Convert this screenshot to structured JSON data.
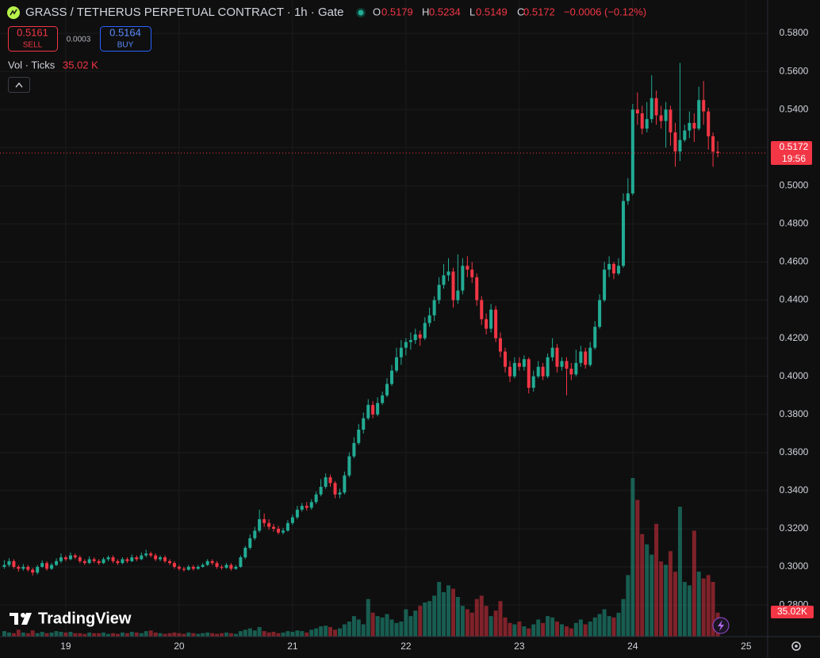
{
  "header": {
    "title": "GRASS / TETHERUS PERPETUAL CONTRACT · 1h · Gate",
    "ohlc": [
      {
        "label": "O",
        "value": 0.5179
      },
      {
        "label": "H",
        "value": 0.5234
      },
      {
        "label": "L",
        "value": 0.5149
      },
      {
        "label": "C",
        "value": 0.5172
      }
    ],
    "change": "−0.0006 (−0.12%)"
  },
  "order_panel": {
    "sell": {
      "price": 0.5161,
      "label": "SELL"
    },
    "spread": 0.0003,
    "buy": {
      "price": 0.5164,
      "label": "BUY"
    }
  },
  "watermark": "TradingView",
  "chart_data": {
    "type": "candlestick",
    "up_color": "#22ab94",
    "down_color": "#f23645",
    "x": [
      18.458,
      18.5,
      18.542,
      18.583,
      18.625,
      18.667,
      18.708,
      18.75,
      18.792,
      18.833,
      18.875,
      18.917,
      18.958,
      19,
      19.042,
      19.083,
      19.125,
      19.167,
      19.208,
      19.25,
      19.292,
      19.333,
      19.375,
      19.417,
      19.458,
      19.5,
      19.542,
      19.583,
      19.625,
      19.667,
      19.708,
      19.75,
      19.792,
      19.833,
      19.875,
      19.917,
      19.958,
      20,
      20.042,
      20.083,
      20.125,
      20.167,
      20.208,
      20.25,
      20.292,
      20.333,
      20.375,
      20.417,
      20.458,
      20.5,
      20.542,
      20.583,
      20.625,
      20.667,
      20.708,
      20.75,
      20.792,
      20.833,
      20.875,
      20.917,
      20.958,
      21,
      21.042,
      21.083,
      21.125,
      21.167,
      21.208,
      21.25,
      21.292,
      21.333,
      21.375,
      21.417,
      21.458,
      21.5,
      21.542,
      21.583,
      21.625,
      21.667,
      21.708,
      21.75,
      21.792,
      21.833,
      21.875,
      21.917,
      21.958,
      22,
      22.042,
      22.083,
      22.125,
      22.167,
      22.208,
      22.25,
      22.292,
      22.333,
      22.375,
      22.417,
      22.458,
      22.5,
      22.542,
      22.583,
      22.625,
      22.667,
      22.708,
      22.75,
      22.792,
      22.833,
      22.875,
      22.917,
      22.958,
      23,
      23.042,
      23.083,
      23.125,
      23.167,
      23.208,
      23.25,
      23.292,
      23.333,
      23.375,
      23.417,
      23.458,
      23.5,
      23.542,
      23.583,
      23.625,
      23.667,
      23.708,
      23.75,
      23.792,
      23.833,
      23.875,
      23.917,
      23.958,
      24,
      24.042,
      24.083,
      24.125,
      24.167,
      24.208,
      24.25,
      24.292,
      24.333,
      24.375,
      24.417,
      24.458,
      24.5,
      24.542,
      24.583,
      24.625,
      24.667,
      24.708,
      24.75
    ],
    "ohlc": [
      [
        0.3,
        0.3035,
        0.299,
        0.301
      ],
      [
        0.301,
        0.3045,
        0.3,
        0.303
      ],
      [
        0.303,
        0.304,
        0.299,
        0.3
      ],
      [
        0.3,
        0.301,
        0.2975,
        0.299
      ],
      [
        0.299,
        0.3015,
        0.298,
        0.3
      ],
      [
        0.3,
        0.301,
        0.2975,
        0.2985
      ],
      [
        0.2985,
        0.2995,
        0.2955,
        0.297
      ],
      [
        0.297,
        0.301,
        0.296,
        0.3
      ],
      [
        0.3,
        0.3035,
        0.2995,
        0.302
      ],
      [
        0.302,
        0.303,
        0.298,
        0.299
      ],
      [
        0.299,
        0.302,
        0.2985,
        0.301
      ],
      [
        0.301,
        0.3045,
        0.3005,
        0.303
      ],
      [
        0.303,
        0.307,
        0.302,
        0.305
      ],
      [
        0.305,
        0.306,
        0.303,
        0.304
      ],
      [
        0.304,
        0.3075,
        0.3035,
        0.306
      ],
      [
        0.306,
        0.307,
        0.304,
        0.305
      ],
      [
        0.305,
        0.306,
        0.302,
        0.303
      ],
      [
        0.303,
        0.304,
        0.301,
        0.302
      ],
      [
        0.302,
        0.3055,
        0.3015,
        0.304
      ],
      [
        0.304,
        0.305,
        0.302,
        0.303
      ],
      [
        0.303,
        0.304,
        0.301,
        0.302
      ],
      [
        0.302,
        0.305,
        0.3015,
        0.304
      ],
      [
        0.304,
        0.306,
        0.303,
        0.305
      ],
      [
        0.305,
        0.306,
        0.302,
        0.303
      ],
      [
        0.303,
        0.304,
        0.301,
        0.302
      ],
      [
        0.302,
        0.305,
        0.3015,
        0.304
      ],
      [
        0.304,
        0.305,
        0.302,
        0.303
      ],
      [
        0.303,
        0.3065,
        0.3025,
        0.305
      ],
      [
        0.305,
        0.306,
        0.303,
        0.304
      ],
      [
        0.304,
        0.3075,
        0.3035,
        0.306
      ],
      [
        0.306,
        0.309,
        0.305,
        0.307
      ],
      [
        0.307,
        0.308,
        0.305,
        0.306
      ],
      [
        0.306,
        0.307,
        0.303,
        0.304
      ],
      [
        0.304,
        0.306,
        0.303,
        0.305
      ],
      [
        0.305,
        0.306,
        0.302,
        0.303
      ],
      [
        0.303,
        0.304,
        0.301,
        0.302
      ],
      [
        0.302,
        0.303,
        0.299,
        0.3
      ],
      [
        0.3,
        0.301,
        0.298,
        0.299
      ],
      [
        0.299,
        0.3,
        0.2975,
        0.2985
      ],
      [
        0.2985,
        0.301,
        0.298,
        0.3
      ],
      [
        0.3,
        0.301,
        0.298,
        0.299
      ],
      [
        0.299,
        0.301,
        0.2985,
        0.3
      ],
      [
        0.3,
        0.302,
        0.2995,
        0.301
      ],
      [
        0.301,
        0.304,
        0.3005,
        0.303
      ],
      [
        0.303,
        0.304,
        0.301,
        0.302
      ],
      [
        0.302,
        0.303,
        0.299,
        0.3
      ],
      [
        0.3,
        0.301,
        0.2985,
        0.2995
      ],
      [
        0.2995,
        0.302,
        0.299,
        0.301
      ],
      [
        0.301,
        0.302,
        0.298,
        0.299
      ],
      [
        0.299,
        0.301,
        0.2985,
        0.3
      ],
      [
        0.3,
        0.306,
        0.2995,
        0.305
      ],
      [
        0.305,
        0.311,
        0.304,
        0.31
      ],
      [
        0.31,
        0.317,
        0.309,
        0.315
      ],
      [
        0.315,
        0.321,
        0.314,
        0.319
      ],
      [
        0.319,
        0.33,
        0.318,
        0.325
      ],
      [
        0.325,
        0.328,
        0.321,
        0.323
      ],
      [
        0.323,
        0.325,
        0.3195,
        0.321
      ],
      [
        0.321,
        0.3225,
        0.3185,
        0.32
      ],
      [
        0.32,
        0.3215,
        0.317,
        0.318
      ],
      [
        0.318,
        0.3205,
        0.317,
        0.319
      ],
      [
        0.319,
        0.3245,
        0.3185,
        0.323
      ],
      [
        0.323,
        0.3275,
        0.322,
        0.326
      ],
      [
        0.326,
        0.332,
        0.325,
        0.33
      ],
      [
        0.33,
        0.3335,
        0.329,
        0.332
      ],
      [
        0.332,
        0.334,
        0.3295,
        0.331
      ],
      [
        0.331,
        0.3355,
        0.33,
        0.334
      ],
      [
        0.334,
        0.3395,
        0.333,
        0.338
      ],
      [
        0.338,
        0.346,
        0.337,
        0.342
      ],
      [
        0.342,
        0.349,
        0.341,
        0.347
      ],
      [
        0.347,
        0.3485,
        0.342,
        0.344
      ],
      [
        0.344,
        0.345,
        0.336,
        0.338
      ],
      [
        0.338,
        0.341,
        0.336,
        0.339
      ],
      [
        0.339,
        0.35,
        0.338,
        0.348
      ],
      [
        0.348,
        0.36,
        0.347,
        0.358
      ],
      [
        0.358,
        0.368,
        0.357,
        0.365
      ],
      [
        0.365,
        0.375,
        0.364,
        0.372
      ],
      [
        0.372,
        0.381,
        0.37,
        0.378
      ],
      [
        0.378,
        0.388,
        0.377,
        0.385
      ],
      [
        0.385,
        0.387,
        0.378,
        0.38
      ],
      [
        0.38,
        0.389,
        0.379,
        0.386
      ],
      [
        0.386,
        0.392,
        0.385,
        0.39
      ],
      [
        0.39,
        0.399,
        0.389,
        0.396
      ],
      [
        0.396,
        0.406,
        0.395,
        0.403
      ],
      [
        0.403,
        0.415,
        0.402,
        0.41
      ],
      [
        0.41,
        0.419,
        0.406,
        0.415
      ],
      [
        0.415,
        0.42,
        0.411,
        0.418
      ],
      [
        0.418,
        0.423,
        0.414,
        0.419
      ],
      [
        0.419,
        0.425,
        0.417,
        0.422
      ],
      [
        0.422,
        0.424,
        0.416,
        0.42
      ],
      [
        0.42,
        0.431,
        0.419,
        0.428
      ],
      [
        0.428,
        0.436,
        0.426,
        0.432
      ],
      [
        0.432,
        0.442,
        0.429,
        0.44
      ],
      [
        0.44,
        0.452,
        0.438,
        0.448
      ],
      [
        0.448,
        0.459,
        0.446,
        0.453
      ],
      [
        0.453,
        0.462,
        0.45,
        0.455
      ],
      [
        0.455,
        0.457,
        0.436,
        0.44
      ],
      [
        0.44,
        0.464,
        0.438,
        0.445
      ],
      [
        0.445,
        0.462,
        0.443,
        0.458
      ],
      [
        0.458,
        0.463,
        0.452,
        0.456
      ],
      [
        0.456,
        0.46,
        0.449,
        0.452
      ],
      [
        0.452,
        0.454,
        0.437,
        0.44
      ],
      [
        0.44,
        0.442,
        0.427,
        0.43
      ],
      [
        0.43,
        0.433,
        0.422,
        0.425
      ],
      [
        0.425,
        0.438,
        0.423,
        0.435
      ],
      [
        0.435,
        0.437,
        0.418,
        0.42
      ],
      [
        0.42,
        0.423,
        0.41,
        0.413
      ],
      [
        0.413,
        0.415,
        0.402,
        0.405
      ],
      [
        0.405,
        0.408,
        0.397,
        0.4
      ],
      [
        0.4,
        0.41,
        0.399,
        0.407
      ],
      [
        0.407,
        0.41,
        0.403,
        0.405
      ],
      [
        0.405,
        0.411,
        0.403,
        0.409
      ],
      [
        0.409,
        0.41,
        0.391,
        0.394
      ],
      [
        0.394,
        0.403,
        0.392,
        0.4
      ],
      [
        0.4,
        0.408,
        0.399,
        0.405
      ],
      [
        0.405,
        0.407,
        0.398,
        0.4
      ],
      [
        0.4,
        0.412,
        0.399,
        0.41
      ],
      [
        0.41,
        0.42,
        0.408,
        0.415
      ],
      [
        0.415,
        0.417,
        0.402,
        0.405
      ],
      [
        0.405,
        0.41,
        0.403,
        0.408
      ],
      [
        0.408,
        0.41,
        0.39,
        0.404
      ],
      [
        0.404,
        0.407,
        0.398,
        0.401
      ],
      [
        0.401,
        0.414,
        0.4,
        0.407
      ],
      [
        0.407,
        0.416,
        0.405,
        0.413
      ],
      [
        0.413,
        0.415,
        0.404,
        0.406
      ],
      [
        0.406,
        0.418,
        0.405,
        0.415
      ],
      [
        0.415,
        0.429,
        0.414,
        0.426
      ],
      [
        0.426,
        0.443,
        0.425,
        0.44
      ],
      [
        0.44,
        0.46,
        0.439,
        0.456
      ],
      [
        0.456,
        0.463,
        0.452,
        0.459
      ],
      [
        0.459,
        0.46,
        0.451,
        0.454
      ],
      [
        0.454,
        0.462,
        0.453,
        0.458
      ],
      [
        0.458,
        0.496,
        0.457,
        0.492
      ],
      [
        0.492,
        0.504,
        0.49,
        0.496
      ],
      [
        0.496,
        0.543,
        0.495,
        0.54
      ],
      [
        0.54,
        0.549,
        0.532,
        0.538
      ],
      [
        0.538,
        0.542,
        0.527,
        0.53
      ],
      [
        0.53,
        0.544,
        0.528,
        0.535
      ],
      [
        0.535,
        0.558,
        0.533,
        0.546
      ],
      [
        0.546,
        0.55,
        0.532,
        0.537
      ],
      [
        0.537,
        0.542,
        0.53,
        0.534
      ],
      [
        0.534,
        0.544,
        0.52,
        0.54
      ],
      [
        0.54,
        0.542,
        0.521,
        0.528
      ],
      [
        0.528,
        0.533,
        0.51,
        0.518
      ],
      [
        0.518,
        0.5645,
        0.513,
        0.524
      ],
      [
        0.524,
        0.532,
        0.523,
        0.529
      ],
      [
        0.529,
        0.539,
        0.525,
        0.533
      ],
      [
        0.533,
        0.538,
        0.523,
        0.53
      ],
      [
        0.53,
        0.552,
        0.529,
        0.545
      ],
      [
        0.545,
        0.555,
        0.532,
        0.539
      ],
      [
        0.539,
        0.541,
        0.519,
        0.526
      ],
      [
        0.526,
        0.528,
        0.51,
        0.5179
      ],
      [
        0.5179,
        0.5234,
        0.5149,
        0.5172
      ]
    ],
    "volume": [
      8000,
      6000,
      5000,
      10000,
      6000,
      5000,
      9000,
      5000,
      7000,
      5000,
      6000,
      8000,
      7000,
      6000,
      7000,
      5000,
      5000,
      4000,
      6000,
      5000,
      5000,
      6000,
      4000,
      5000,
      4000,
      6000,
      5000,
      7000,
      6000,
      5000,
      8000,
      9000,
      6000,
      5000,
      4000,
      5000,
      6000,
      5000,
      4000,
      6000,
      5000,
      4000,
      5000,
      6000,
      5000,
      4000,
      5000,
      6000,
      5000,
      4000,
      8000,
      10000,
      12000,
      9000,
      14000,
      8000,
      6000,
      7000,
      5000,
      6000,
      8000,
      7000,
      9000,
      8000,
      6000,
      10000,
      12000,
      15000,
      16000,
      14000,
      10000,
      12000,
      18000,
      22000,
      30000,
      25000,
      18000,
      55000,
      35000,
      30000,
      28000,
      33000,
      25000,
      20000,
      22000,
      40000,
      30000,
      38000,
      45000,
      50000,
      52000,
      60000,
      80000,
      65000,
      75000,
      70000,
      58000,
      45000,
      40000,
      35000,
      55000,
      60000,
      45000,
      30000,
      38000,
      52000,
      28000,
      20000,
      18000,
      22000,
      15000,
      12000,
      18000,
      25000,
      20000,
      30000,
      28000,
      22000,
      18000,
      15000,
      12000,
      20000,
      25000,
      18000,
      22000,
      28000,
      33000,
      40000,
      30000,
      28000,
      35000,
      55000,
      90000,
      232000,
      200000,
      150000,
      135000,
      120000,
      165000,
      110000,
      105000,
      125000,
      95000,
      190000,
      80000,
      75000,
      155000,
      95000,
      85000,
      90000,
      80000,
      35020
    ],
    "volume_title": "Vol · Ticks",
    "volume_legend_value": "35.02 K",
    "volume_value_label": "35.02K",
    "last_price": 0.5172,
    "countdown": "19:56",
    "xlim": [
      18.42,
      25.19
    ],
    "xticks": [
      19,
      20,
      21,
      22,
      23,
      24,
      25
    ],
    "ylim": [
      0.2634,
      0.5975
    ],
    "yticks": [
      {
        "value": 0.58,
        "label": "0.5800"
      },
      {
        "value": 0.56,
        "label": "0.5600"
      },
      {
        "value": 0.54,
        "label": "0.5400"
      },
      {
        "value": 0.52,
        "label": "0.5200"
      },
      {
        "value": 0.5,
        "label": "0.5000"
      },
      {
        "value": 0.48,
        "label": "0.4800"
      },
      {
        "value": 0.46,
        "label": "0.4600"
      },
      {
        "value": 0.44,
        "label": "0.4400"
      },
      {
        "value": 0.42,
        "label": "0.4200"
      },
      {
        "value": 0.4,
        "label": "0.4000"
      },
      {
        "value": 0.38,
        "label": "0.3800"
      },
      {
        "value": 0.36,
        "label": "0.3600"
      },
      {
        "value": 0.34,
        "label": "0.3400"
      },
      {
        "value": 0.32,
        "label": "0.3200"
      },
      {
        "value": 0.3,
        "label": "0.3000"
      },
      {
        "value": 0.28,
        "label": "0.2800"
      }
    ],
    "grid": true
  }
}
